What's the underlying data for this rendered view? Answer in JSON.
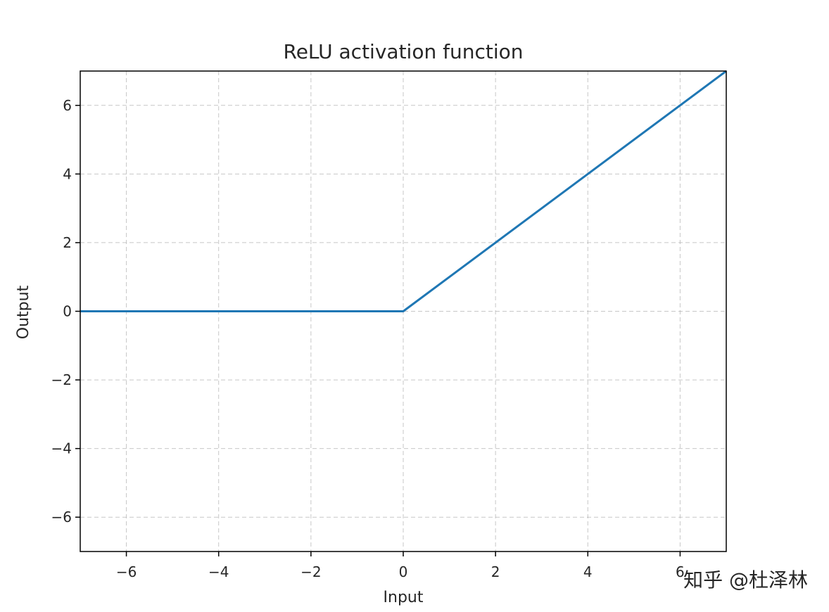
{
  "chart_data": {
    "type": "line",
    "title": "ReLU activation function",
    "xlabel": "Input",
    "ylabel": "Output",
    "xlim": [
      -7,
      7
    ],
    "ylim": [
      -7,
      7
    ],
    "xticks": [
      -6,
      -4,
      -2,
      0,
      2,
      4,
      6
    ],
    "yticks": [
      -6,
      -4,
      -2,
      0,
      2,
      4,
      6
    ],
    "xtick_labels": [
      "−6",
      "−4",
      "−2",
      "0",
      "2",
      "4",
      "6"
    ],
    "ytick_labels": [
      "−6",
      "−4",
      "−2",
      "0",
      "2",
      "4",
      "6"
    ],
    "grid": true,
    "grid_style": "dashed",
    "series": [
      {
        "color": "#1f77b4",
        "x": [
          -7,
          0,
          7
        ],
        "y": [
          0,
          0,
          7
        ]
      }
    ]
  },
  "watermark": {
    "text": "知乎 @杜泽林"
  }
}
